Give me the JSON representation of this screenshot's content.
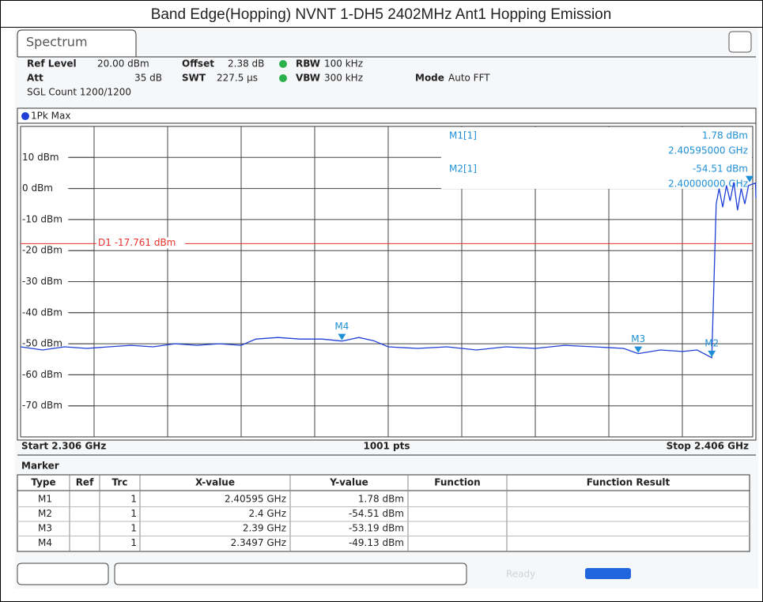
{
  "header": {
    "title": "Band Edge(Hopping) NVNT 1-DH5 2402MHz Ant1 Hopping Emission"
  },
  "tab": "Spectrum",
  "settings": {
    "ref_level": {
      "label": "Ref Level",
      "value": "20.00 dBm"
    },
    "offset": {
      "label": "Offset",
      "value": "2.38 dB"
    },
    "rbw": {
      "label": "RBW",
      "value": "100 kHz"
    },
    "att": {
      "label": "Att",
      "value": "35 dB"
    },
    "swt": {
      "label": "SWT",
      "value": "227.5 µs"
    },
    "vbw": {
      "label": "VBW",
      "value": "300 kHz"
    },
    "mode": {
      "label": "Mode",
      "value": "Auto FFT"
    },
    "count": "SGL Count 1200/1200"
  },
  "trace_label": "1Pk Max",
  "chart": {
    "type": "line",
    "xlim": [
      2.306,
      2.406
    ],
    "ylim": [
      -80,
      20
    ],
    "yticks": [
      {
        "value": 10,
        "label": "10 dBm"
      },
      {
        "value": 0,
        "label": "0 dBm"
      },
      {
        "value": -10,
        "label": "-10 dBm"
      },
      {
        "value": -20,
        "label": "-20 dBm"
      },
      {
        "value": -30,
        "label": "-30 dBm"
      },
      {
        "value": -40,
        "label": "-40 dBm"
      },
      {
        "value": -50,
        "label": "-50 dBm"
      },
      {
        "value": -60,
        "label": "-60 dBm"
      },
      {
        "value": -70,
        "label": "-70 dBm"
      }
    ],
    "grid": true,
    "trace": {
      "color": "#1f3fd6",
      "x": [
        2.306,
        2.309,
        2.312,
        2.315,
        2.318,
        2.321,
        2.324,
        2.327,
        2.33,
        2.333,
        2.336,
        2.338,
        2.341,
        2.344,
        2.347,
        2.3497,
        2.352,
        2.354,
        2.356,
        2.36,
        2.364,
        2.368,
        2.372,
        2.376,
        2.38,
        2.384,
        2.388,
        2.39,
        2.393,
        2.396,
        2.398,
        2.4,
        2.4003,
        2.4006,
        2.401,
        2.4015,
        2.402,
        2.4025,
        2.403,
        2.4035,
        2.404,
        2.4045,
        2.405,
        2.40595,
        2.406
      ],
      "y": [
        -51,
        -52,
        -51,
        -51.5,
        -51,
        -50.5,
        -51,
        -50,
        -50.5,
        -50,
        -50.5,
        -48.5,
        -48,
        -48.5,
        -48.5,
        -49.13,
        -48,
        -49,
        -51,
        -51.5,
        -51,
        -52,
        -51,
        -51.5,
        -50.5,
        -51,
        -51.5,
        -53.19,
        -52,
        -52.5,
        -52,
        -54.51,
        -30,
        -5,
        0,
        -6,
        1,
        -4,
        2,
        -7,
        0,
        -5,
        1,
        1.78,
        -3
      ]
    },
    "display_line": {
      "value": -17.761,
      "label": "D1 -17.761 dBm",
      "color": "#e8322c"
    },
    "markers": [
      {
        "x": 2.40595,
        "y": 1.78
      },
      {
        "x": 2.4,
        "y": -54.51,
        "label": "M2"
      },
      {
        "x": 2.39,
        "y": -53.19,
        "label": "M3"
      },
      {
        "x": 2.3497,
        "y": -49.13,
        "label": "M4"
      }
    ],
    "marker_color": "#1e8fd6",
    "info": [
      {
        "label": "M1[1]",
        "value": "1.78 dBm",
        "freq": "2.40595000 GHz"
      },
      {
        "label": "M2[1]",
        "value": "-54.51 dBm",
        "freq": "2.40000000 GHz"
      }
    ],
    "start": "Start 2.306 GHz",
    "points": "1001 pts",
    "stop": "Stop 2.406 GHz"
  },
  "table": {
    "title": "Marker",
    "columns": [
      "Type",
      "Ref",
      "Trc",
      "X-value",
      "Y-value",
      "Function",
      "Function Result"
    ],
    "rows": [
      {
        "type": "M1",
        "trc": "1",
        "x": "2.40595 GHz",
        "y": "1.78 dBm"
      },
      {
        "type": "M2",
        "trc": "1",
        "x": "2.4 GHz",
        "y": "-54.51 dBm"
      },
      {
        "type": "M3",
        "trc": "1",
        "x": "2.39 GHz",
        "y": "-53.19 dBm"
      },
      {
        "type": "M4",
        "trc": "1",
        "x": "2.3497 GHz",
        "y": "-49.13 dBm"
      }
    ]
  },
  "status": "Ready"
}
